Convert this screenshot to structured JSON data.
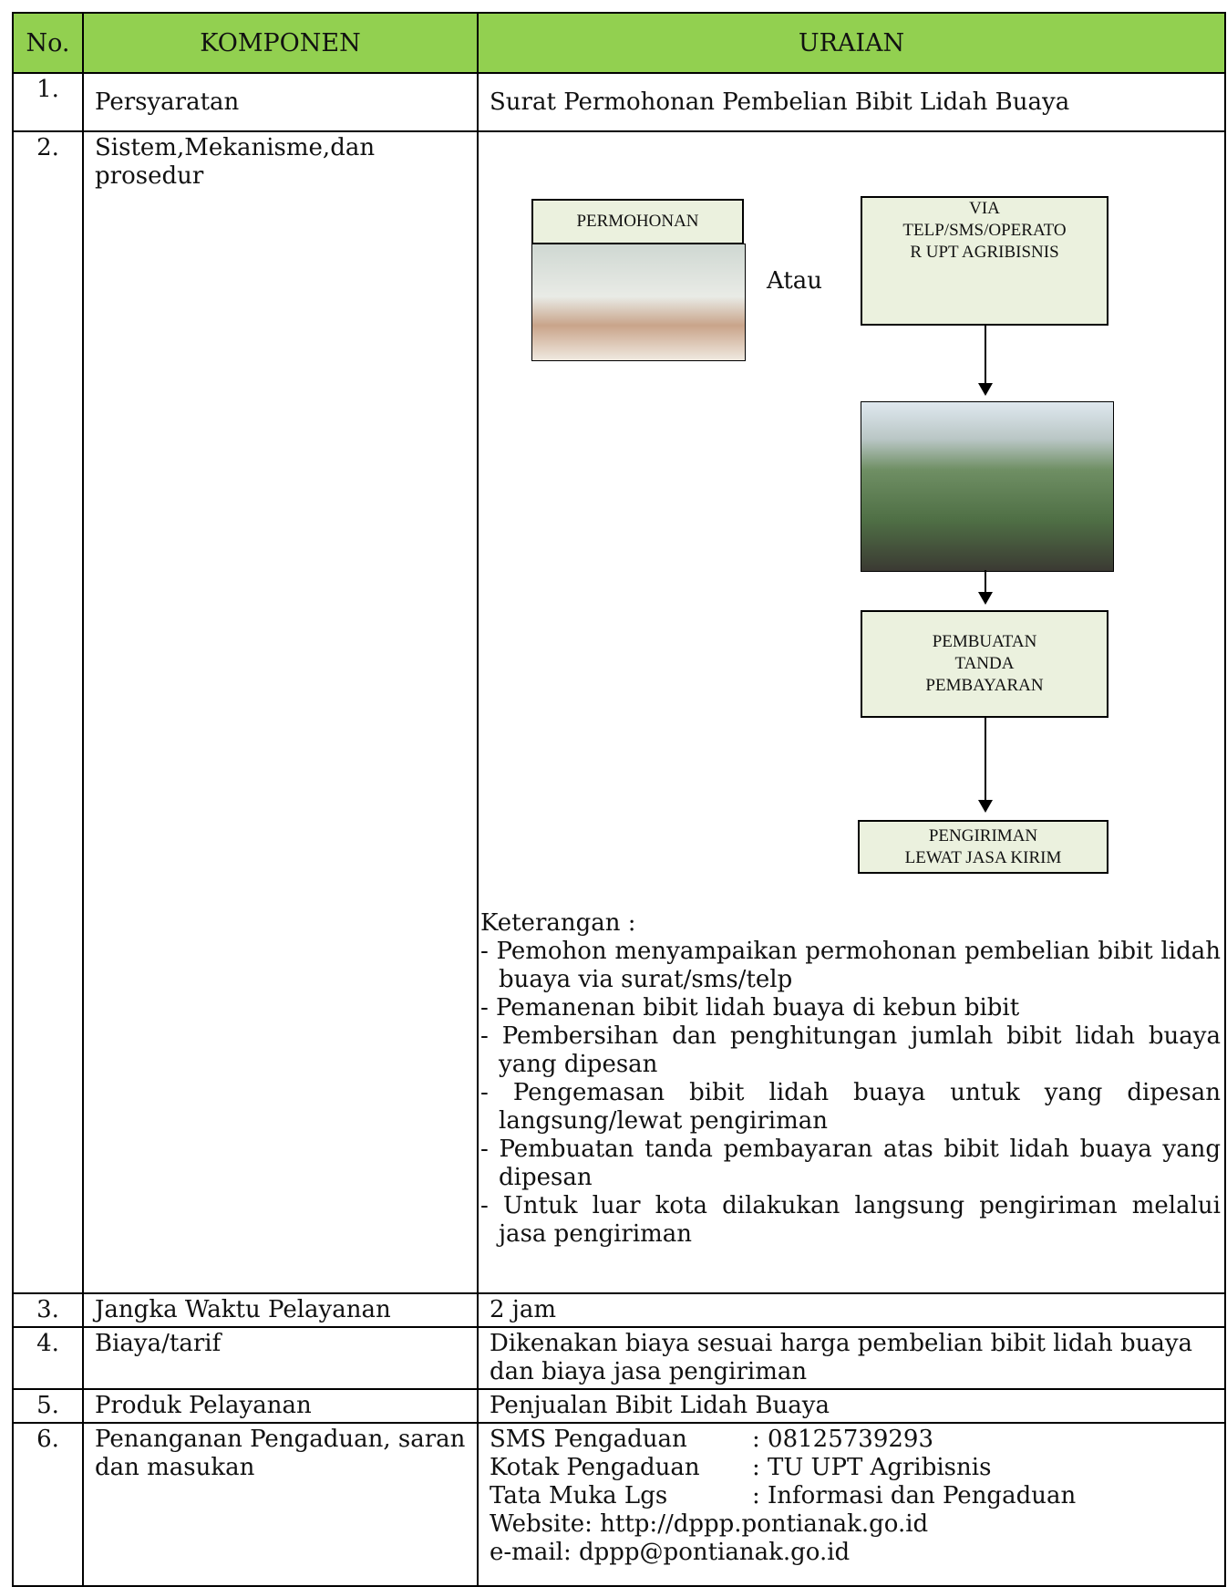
{
  "header": {
    "no": "No.",
    "komponen": "KOMPONEN",
    "uraian": "URAIAN"
  },
  "rows": [
    {
      "no": "1.",
      "komponen": "Persyaratan",
      "uraian": "Surat Permohonan Pembelian Bibit Lidah Buaya"
    },
    {
      "no": "2.",
      "komponen": "Sistem,Mekanisme,dan prosedur",
      "flowchart": {
        "nodes": [
          {
            "lines": [
              "PERMOHONAN"
            ]
          },
          {
            "lines": [
              "VIA",
              "TELP/SMS/OPERATO",
              "R UPT AGRIBISNIS"
            ]
          },
          {
            "lines": [
              "PEMBUATAN",
              "TANDA",
              "PEMBAYARAN"
            ]
          },
          {
            "lines": [
              "PENGIRIMAN",
              "LEWAT JASA KIRIM"
            ]
          }
        ],
        "or": "Atau"
      },
      "notes": {
        "title": "Keterangan :",
        "items": [
          "- Pemohon menyampaikan permohonan pembelian bibit lidah buaya via surat/sms/telp",
          "- Pemanenan bibit lidah buaya di kebun bibit",
          "- Pembersihan dan penghitungan jumlah bibit lidah buaya yang dipesan",
          "- Pengemasan bibit lidah buaya untuk yang dipesan langsung/lewat pengiriman",
          "- Pembuatan tanda pembayaran atas bibit lidah buaya yang dipesan",
          "- Untuk luar kota dilakukan langsung pengiriman melalui jasa pengiriman"
        ]
      }
    },
    {
      "no": "3.",
      "komponen": "Jangka Waktu Pelayanan",
      "uraian": "2 jam"
    },
    {
      "no": "4.",
      "komponen": "Biaya/tarif",
      "uraian": "Dikenakan biaya sesuai harga pembelian bibit lidah buaya dan biaya jasa pengiriman"
    },
    {
      "no": "5.",
      "komponen": "Produk Pelayanan",
      "uraian": "Penjualan Bibit Lidah Buaya"
    },
    {
      "no": "6.",
      "komponen": "Penanganan Pengaduan, saran dan masukan",
      "contacts": [
        {
          "label": "SMS Pengaduan",
          "value": ": 08125739293"
        },
        {
          "label": "Kotak Pengaduan",
          "value": ": TU UPT Agribisnis"
        },
        {
          "label": "Tata Muka Lgs",
          "value": ": Informasi dan Pengaduan"
        }
      ],
      "website": "Website: http://dppp.pontianak.go.id",
      "email": "e-mail: dppp@pontianak.go.id"
    }
  ]
}
